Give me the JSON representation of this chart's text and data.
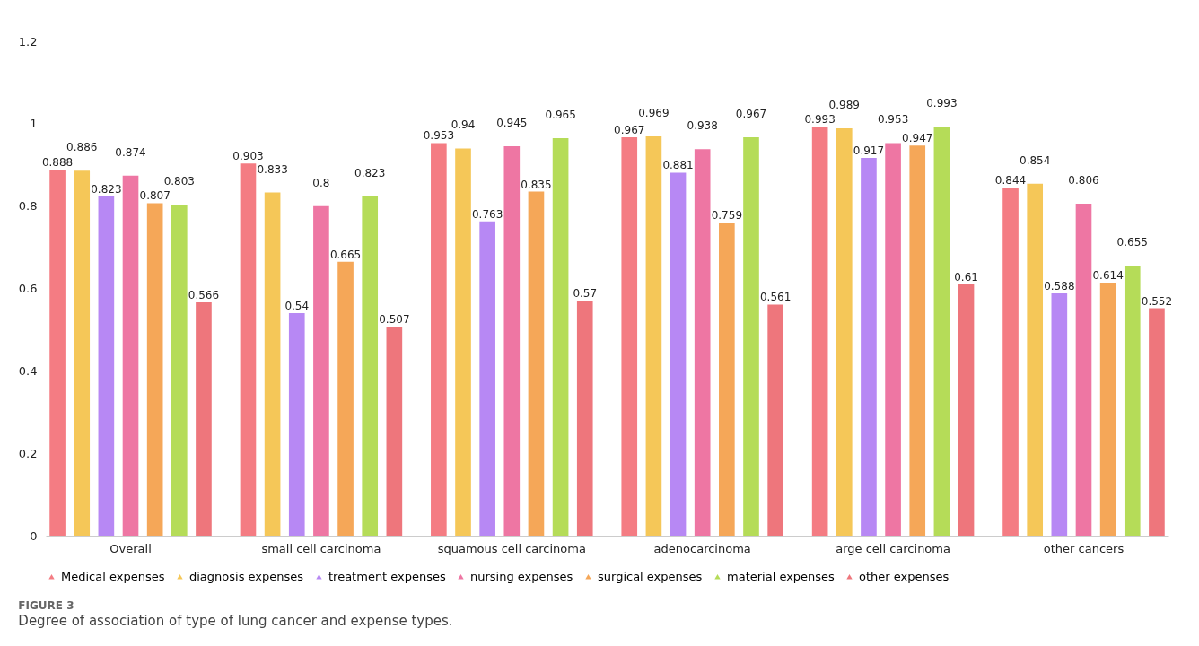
{
  "chart_data": {
    "type": "bar",
    "categories": [
      "Overall",
      "small cell carcinoma",
      "squamous cell carcinoma",
      "adenocarcinoma",
      "arge cell carcinoma",
      "other cancers"
    ],
    "series": [
      {
        "name": "Medical expenses",
        "color": "#f0505a",
        "values": [
          0.888,
          0.903,
          0.953,
          0.967,
          0.993,
          0.844
        ]
      },
      {
        "name": "diagnosis expenses",
        "color": "#f2b420",
        "values": [
          0.886,
          0.833,
          0.94,
          0.969,
          0.989,
          0.854
        ]
      },
      {
        "name": "treatment expenses",
        "color": "#9f60f0",
        "values": [
          0.823,
          0.54,
          0.763,
          0.881,
          0.917,
          0.588
        ]
      },
      {
        "name": "nursing expenses",
        "color": "#e84884",
        "values": [
          0.874,
          0.8,
          0.945,
          0.938,
          0.953,
          0.806
        ]
      },
      {
        "name": "surgical expenses",
        "color": "#f28a20",
        "values": [
          0.807,
          0.665,
          0.835,
          0.759,
          0.947,
          0.614
        ]
      },
      {
        "name": "material expenses",
        "color": "#9cd020",
        "values": [
          0.803,
          0.823,
          0.965,
          0.967,
          0.993,
          0.655
        ]
      },
      {
        "name": "other expenses",
        "color": "#e84850",
        "values": [
          0.566,
          0.507,
          0.57,
          0.561,
          0.61,
          0.552
        ]
      }
    ],
    "ylim": [
      0,
      1.2
    ],
    "yticks": [
      0,
      0.2,
      0.4,
      0.6,
      0.8,
      1,
      1.2
    ],
    "grid": false,
    "legend": "bottom",
    "data_labels": true,
    "annotations": [
      "FIGURE 3",
      "Degree of association of type of lung cancer and expense types."
    ]
  }
}
